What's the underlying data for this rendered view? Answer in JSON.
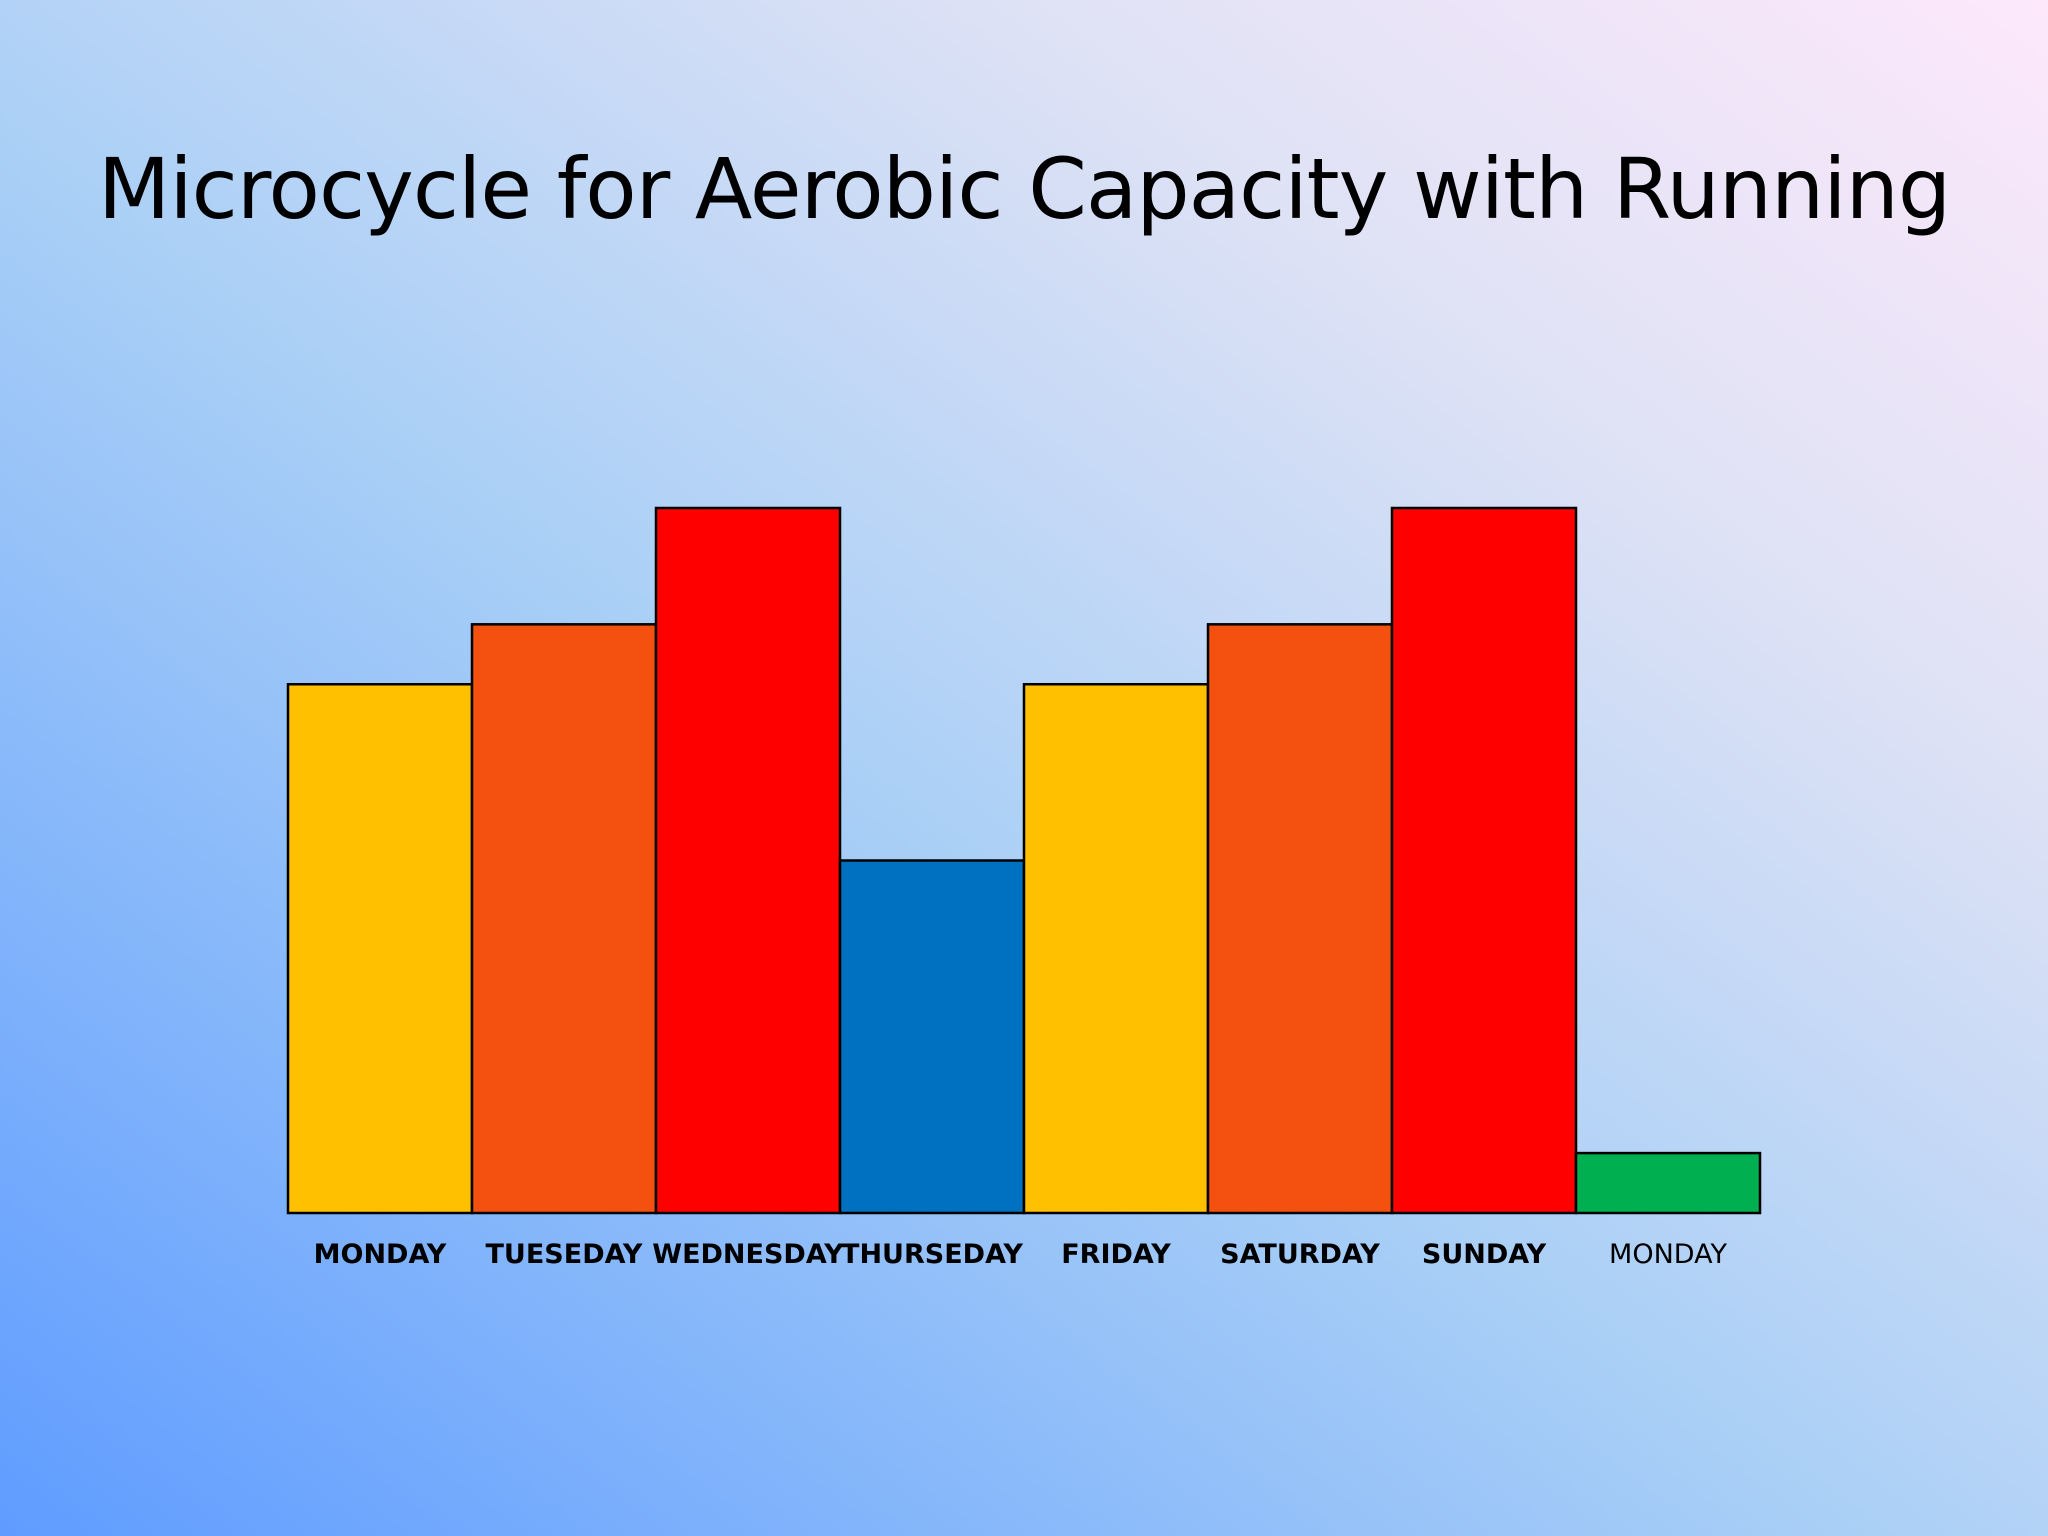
{
  "slide": {
    "title": "Microcycle for Aerobic Capacity with Running"
  },
  "chart_data": {
    "type": "bar",
    "title": "Microcycle for Aerobic Capacity with Running",
    "xlabel": "",
    "ylabel": "",
    "grid": false,
    "categories": [
      "MONDAY",
      "TUESEDAY",
      "WEDNESDAY",
      "THURSEDAY",
      "FRIDAY",
      "SATURDAY",
      "SUNDAY",
      "MONDAY"
    ],
    "values": [
      75,
      83.5,
      100,
      50,
      75,
      83.5,
      100,
      8.5
    ],
    "bar_colors": [
      "#ffc000",
      "#f4500f",
      "#ff0000",
      "#0070c0",
      "#ffc000",
      "#f4500f",
      "#ff0000",
      "#00b050"
    ],
    "label_bold": [
      true,
      true,
      true,
      true,
      true,
      true,
      true,
      false
    ],
    "ylim": [
      0,
      100
    ]
  }
}
